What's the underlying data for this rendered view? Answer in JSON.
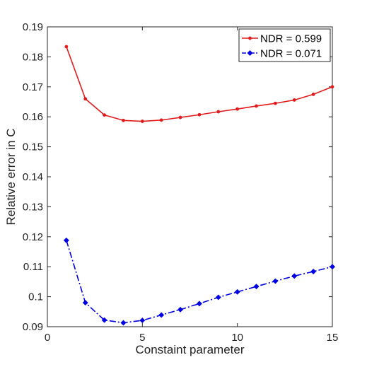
{
  "chart_data": {
    "type": "line",
    "title": "",
    "xlabel": "Constaint parameter",
    "ylabel": "Relative error in C",
    "xlim": [
      0,
      15
    ],
    "ylim": [
      0.09,
      0.19
    ],
    "xticks": [
      0,
      5,
      10,
      15
    ],
    "yticks": [
      0.09,
      0.1,
      0.11,
      0.12,
      0.13,
      0.14,
      0.15,
      0.16,
      0.17,
      0.18,
      0.19
    ],
    "xtick_labels": [
      "0",
      "5",
      "10",
      "15"
    ],
    "ytick_labels": [
      "0.09",
      "0.1",
      "0.11",
      "0.12",
      "0.13",
      "0.14",
      "0.15",
      "0.16",
      "0.17",
      "0.18",
      "0.19"
    ],
    "grid": false,
    "legend_position": "top-right",
    "series": [
      {
        "name": "NDR = 0.599",
        "color": "#e31a1c",
        "line_style": "solid",
        "marker": "dot",
        "x": [
          1,
          2,
          3,
          4,
          5,
          6,
          7,
          8,
          9,
          10,
          11,
          12,
          13,
          14,
          15
        ],
        "y": [
          0.1834,
          0.166,
          0.1606,
          0.1588,
          0.1585,
          0.1589,
          0.1598,
          0.1607,
          0.1617,
          0.1626,
          0.1636,
          0.1645,
          0.1656,
          0.1675,
          0.17
        ]
      },
      {
        "name": "NDR = 0.071",
        "color": "#0000e6",
        "line_style": "dash-dot",
        "marker": "diamond",
        "x": [
          1,
          2,
          3,
          4,
          5,
          6,
          7,
          8,
          9,
          10,
          11,
          12,
          13,
          14,
          15
        ],
        "y": [
          0.1188,
          0.098,
          0.0922,
          0.0913,
          0.0921,
          0.0939,
          0.0957,
          0.0977,
          0.0998,
          0.1016,
          0.1034,
          0.1052,
          0.1069,
          0.1084,
          0.11
        ]
      }
    ]
  }
}
